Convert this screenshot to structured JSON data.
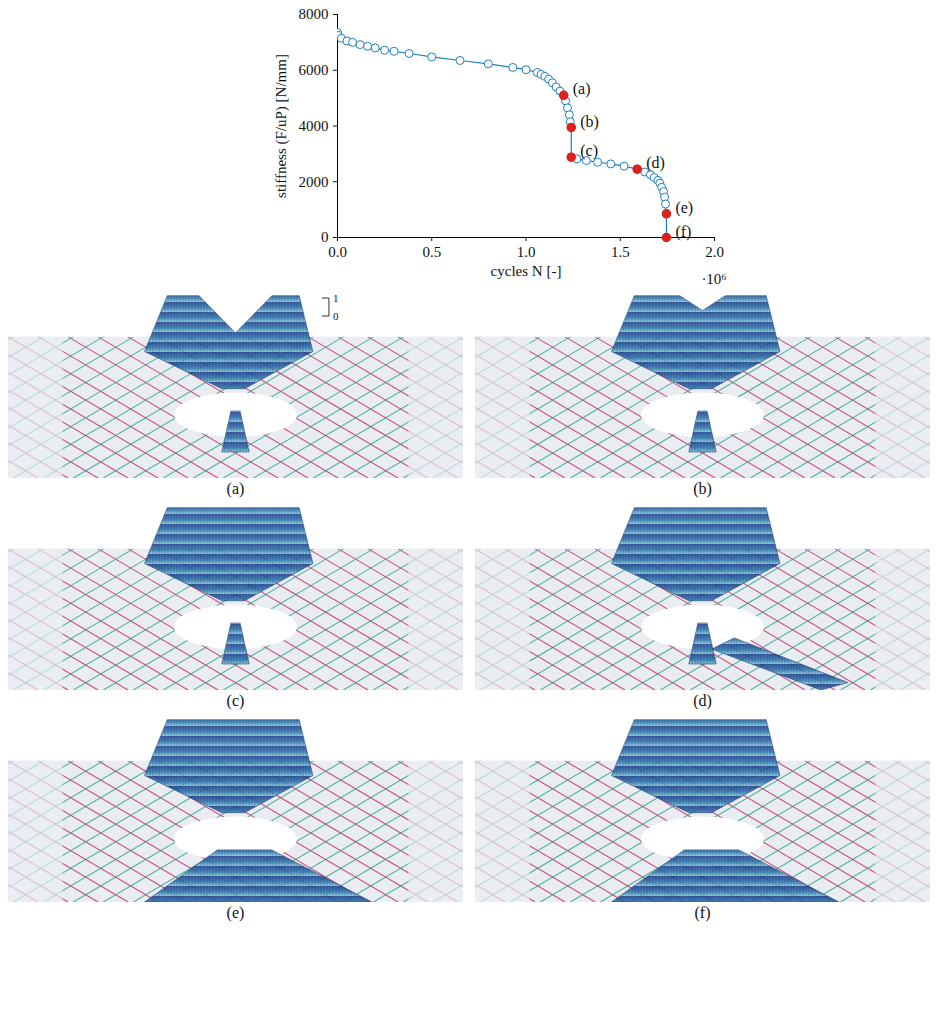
{
  "chart_data": {
    "type": "line",
    "x_label": "cycles N [-]",
    "y_label": "stiffness (F/uP) [N/mm]",
    "x_offset_text": "·10⁶",
    "x": [
      0,
      0.005,
      0.02,
      0.05,
      0.08,
      0.12,
      0.16,
      0.2,
      0.25,
      0.3,
      0.38,
      0.5,
      0.65,
      0.8,
      0.93,
      1.0,
      1.06,
      1.08,
      1.1,
      1.12,
      1.14,
      1.16,
      1.18,
      1.2,
      1.21,
      1.22,
      1.23,
      1.235,
      1.24,
      1.24,
      1.27,
      1.32,
      1.38,
      1.45,
      1.52,
      1.59,
      1.63,
      1.66,
      1.68,
      1.7,
      1.71,
      1.72,
      1.73,
      1.735,
      1.74,
      1.745,
      1.745
    ],
    "values": [
      7350,
      7250,
      7150,
      7050,
      7000,
      6920,
      6860,
      6800,
      6720,
      6680,
      6600,
      6480,
      6350,
      6230,
      6100,
      6020,
      5920,
      5850,
      5780,
      5680,
      5550,
      5400,
      5250,
      5100,
      4900,
      4650,
      4400,
      4150,
      3950,
      2880,
      2820,
      2760,
      2700,
      2640,
      2560,
      2450,
      2350,
      2250,
      2150,
      2050,
      1950,
      1800,
      1650,
      1450,
      1200,
      850,
      0
    ],
    "color": "#1f7fc4",
    "marker": "circle",
    "annotations": [
      {
        "x": 1.2,
        "y": 5100,
        "label": "(a)",
        "color": "#e0201b"
      },
      {
        "x": 1.24,
        "y": 3950,
        "label": "(b)",
        "color": "#e0201b"
      },
      {
        "x": 1.24,
        "y": 2880,
        "label": "(c)",
        "color": "#e0201b"
      },
      {
        "x": 1.59,
        "y": 2450,
        "label": "(d)",
        "color": "#e0201b"
      },
      {
        "x": 1.745,
        "y": 850,
        "label": "(e)",
        "color": "#e0201b"
      },
      {
        "x": 1.745,
        "y": 0,
        "label": "(f)",
        "color": "#e0201b"
      }
    ],
    "xlim": [
      0,
      2
    ],
    "xticks": [
      {
        "value": 0,
        "label": "0.0"
      },
      {
        "value": 0.5,
        "label": "0.5"
      },
      {
        "value": 1,
        "label": "1.0"
      },
      {
        "value": 1.5,
        "label": "1.5"
      },
      {
        "value": 2,
        "label": "2.0"
      }
    ],
    "ylim": [
      0,
      8000
    ],
    "yticks": [
      0,
      2000,
      4000,
      6000,
      8000
    ],
    "grid": false
  },
  "figure": {
    "panels": [
      {
        "caption": "(a)",
        "scale_ticks": [
          1,
          0
        ]
      },
      {
        "caption": "(b)"
      },
      {
        "caption": "(c)"
      },
      {
        "caption": "(d)"
      },
      {
        "caption": "(e)"
      },
      {
        "caption": "(f)"
      }
    ]
  }
}
